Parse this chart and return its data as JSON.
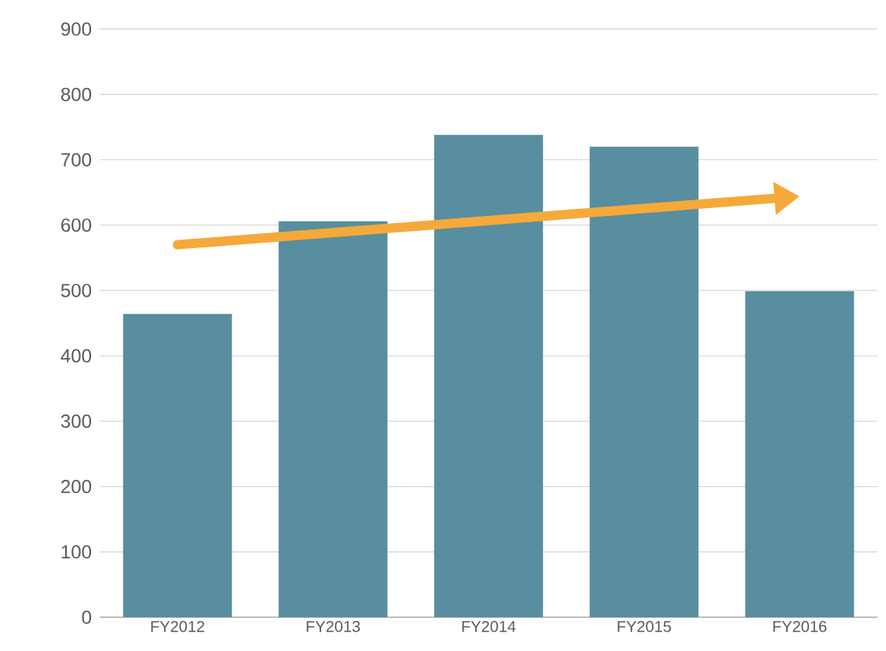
{
  "chart_data": {
    "type": "bar",
    "categories": [
      "FY2012",
      "FY2013",
      "FY2014",
      "FY2015",
      "FY2016"
    ],
    "series": [
      {
        "color": "#588e9f",
        "values": [
          464,
          606,
          738,
          720,
          499
        ]
      },
      {
        "type": "line",
        "color": "#f5a93a",
        "x": [
          "FY2012",
          "FY2016"
        ],
        "values": [
          570,
          644
        ]
      }
    ],
    "ylim": [
      0,
      900
    ],
    "yticks": [
      0,
      100,
      200,
      300,
      400,
      500,
      600,
      700,
      800,
      900
    ],
    "grid": "y"
  }
}
